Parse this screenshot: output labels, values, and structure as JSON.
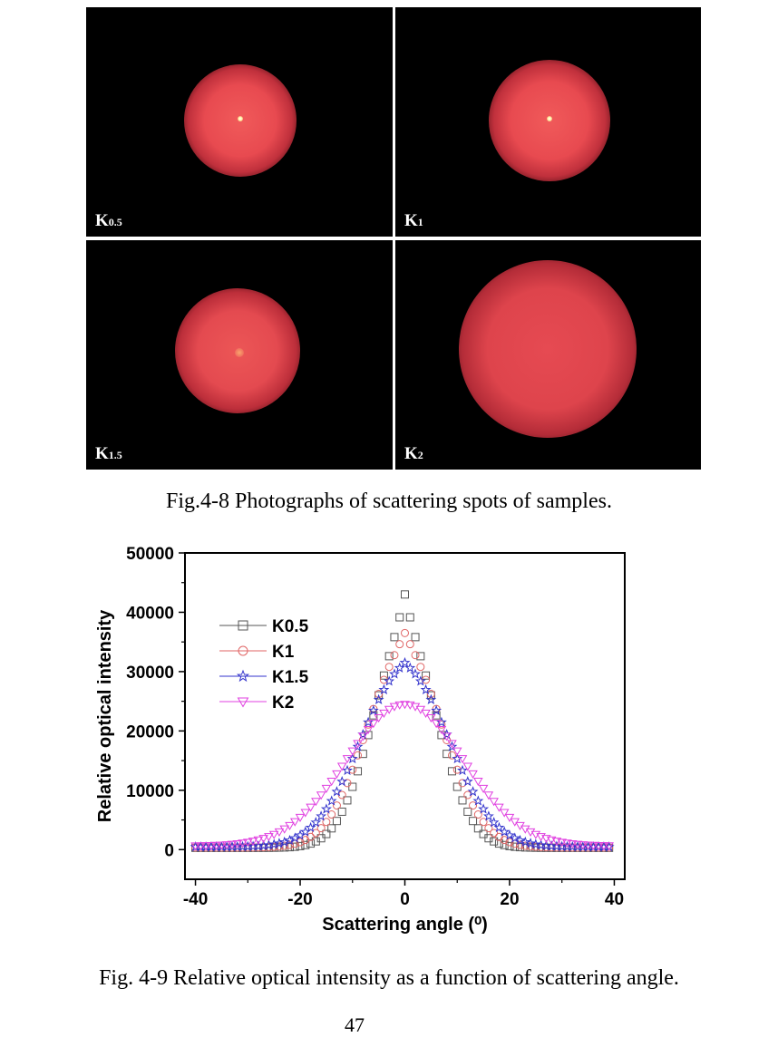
{
  "photos": [
    {
      "label_main": "K",
      "label_sub": "0.5"
    },
    {
      "label_main": "K",
      "label_sub": "1"
    },
    {
      "label_main": "K",
      "label_sub": "1.5"
    },
    {
      "label_main": "K",
      "label_sub": "2"
    }
  ],
  "fig48_caption": "Fig.4-8 Photographs of scattering spots of samples.",
  "fig49_caption": "Fig. 4-9 Relative optical intensity as a function of scattering angle.",
  "page_number": "47",
  "chart_data": {
    "type": "scatter",
    "xlabel": "Scattering angle (⁰)",
    "ylabel": "Relative optical intensity",
    "xlim": [
      -42,
      42
    ],
    "ylim": [
      -5000,
      50000
    ],
    "xticks": [
      "-40",
      "-20",
      "0",
      "20",
      "40"
    ],
    "yticks": [
      "0",
      "10000",
      "20000",
      "30000",
      "40000",
      "50000"
    ],
    "xtick_values": [
      -40,
      -20,
      0,
      20,
      40
    ],
    "ytick_values": [
      0,
      10000,
      20000,
      30000,
      40000,
      50000
    ],
    "legend_position": "upper-left",
    "grid": false,
    "x_range": [
      -40,
      39
    ],
    "series": [
      {
        "name": "K0.5",
        "color": "#555555",
        "marker": "square",
        "peak": 43000,
        "sigma": 6.5,
        "cusp": 0.22,
        "baseline": 300
      },
      {
        "name": "K1",
        "color": "#e06666",
        "marker": "circle",
        "peak": 36500,
        "sigma": 7.5,
        "cusp": 0.12,
        "baseline": 350
      },
      {
        "name": "K1.5",
        "color": "#3333cc",
        "marker": "star",
        "peak": 31500,
        "sigma": 8.6,
        "cusp": 0.06,
        "baseline": 450
      },
      {
        "name": "K2",
        "color": "#e040e0",
        "marker": "triangle",
        "peak": 24500,
        "sigma": 11.2,
        "cusp": 0.0,
        "baseline": 600
      }
    ]
  }
}
